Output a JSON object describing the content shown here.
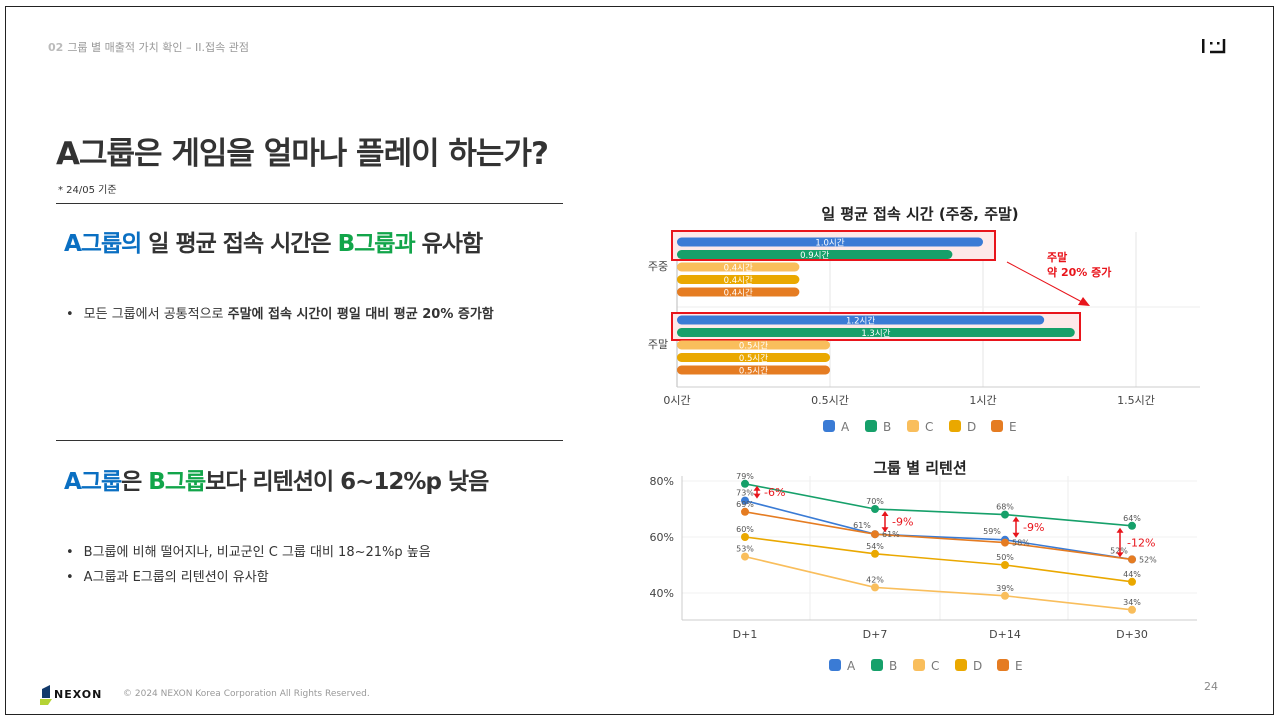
{
  "header": {
    "section_number": "02",
    "breadcrumb": "그룹 별 매출적 가치 확인 – II.접속 관점"
  },
  "title": "A그룹은 게임을 얼마나 플레이 하는가?",
  "date_note": "* 24/05 기준",
  "section1": {
    "head_a": "A그룹의",
    "head_mid": " 일 평균 접속 시간은 ",
    "head_b": "B그룹과",
    "head_end": " 유사함",
    "bullets": [
      {
        "normal": "모든 그룹에서 공통적으로 ",
        "bold": "주말에 접속 시간이 평일 대비 평균 20% 증가함"
      }
    ]
  },
  "section2": {
    "head_a": "A그룹",
    "head_mid": "은 ",
    "head_b": "B그룹",
    "head_end": "보다 리텐션이 6~12%p 낮음",
    "bullets": [
      "B그룹에 비해 떨어지나, 비교군인 C 그룹 대비 18~21%p 높음",
      "A그룹과 E그룹의 리텐션이 유사함"
    ]
  },
  "footer": {
    "brand": "NEXON",
    "copyright": "© 2024 NEXON Korea Corporation All Rights Reserved.",
    "page": "24"
  },
  "colors": {
    "A": "#3a7bd5",
    "B": "#16a06a",
    "C": "#f9be5c",
    "D": "#eaa800",
    "E": "#e57c22",
    "highlight": "#e8141b"
  },
  "chart_data": [
    {
      "type": "bar",
      "orientation": "horizontal",
      "title": "일 평균 접속 시간 (주중, 주말)",
      "categories": [
        "주중",
        "주말"
      ],
      "series": [
        {
          "name": "A",
          "values": [
            1.0,
            1.2
          ],
          "labels": [
            "1.0시간",
            "1.2시간"
          ]
        },
        {
          "name": "B",
          "values": [
            0.9,
            1.3
          ],
          "labels": [
            "0.9시간",
            "1.3시간"
          ]
        },
        {
          "name": "C",
          "values": [
            0.4,
            0.5
          ],
          "labels": [
            "0.4시간",
            "0.5시간"
          ]
        },
        {
          "name": "D",
          "values": [
            0.4,
            0.5
          ],
          "labels": [
            "0.4시간",
            "0.5시간"
          ]
        },
        {
          "name": "E",
          "values": [
            0.4,
            0.5
          ],
          "labels": [
            "0.4시간",
            "0.5시간"
          ]
        }
      ],
      "xticks": [
        0,
        0.5,
        1,
        1.5
      ],
      "xtick_labels": [
        "0시간",
        "0.5시간",
        "1시간",
        "1.5시간"
      ],
      "xlim": [
        0,
        1.7
      ],
      "grid": true,
      "legend": "bottom",
      "annotation": [
        "주말",
        "약 20% 증가"
      ]
    },
    {
      "type": "line",
      "title": "그룹 별 리텐션",
      "categories": [
        "D+1",
        "D+7",
        "D+14",
        "D+30"
      ],
      "series": [
        {
          "name": "A",
          "values": [
            73,
            61,
            59,
            52
          ]
        },
        {
          "name": "B",
          "values": [
            79,
            70,
            68,
            64
          ]
        },
        {
          "name": "C",
          "values": [
            53,
            42,
            39,
            34
          ]
        },
        {
          "name": "D",
          "values": [
            60,
            54,
            50,
            44
          ]
        },
        {
          "name": "E",
          "values": [
            69,
            61,
            58,
            52
          ]
        }
      ],
      "yticks": [
        40,
        60,
        80
      ],
      "ytick_labels": [
        "40%",
        "60%",
        "80%"
      ],
      "ylim": [
        30,
        82
      ],
      "grid": true,
      "legend": "bottom",
      "annotations": [
        "-6%",
        "-9%",
        "-9%",
        "-12%"
      ]
    }
  ]
}
